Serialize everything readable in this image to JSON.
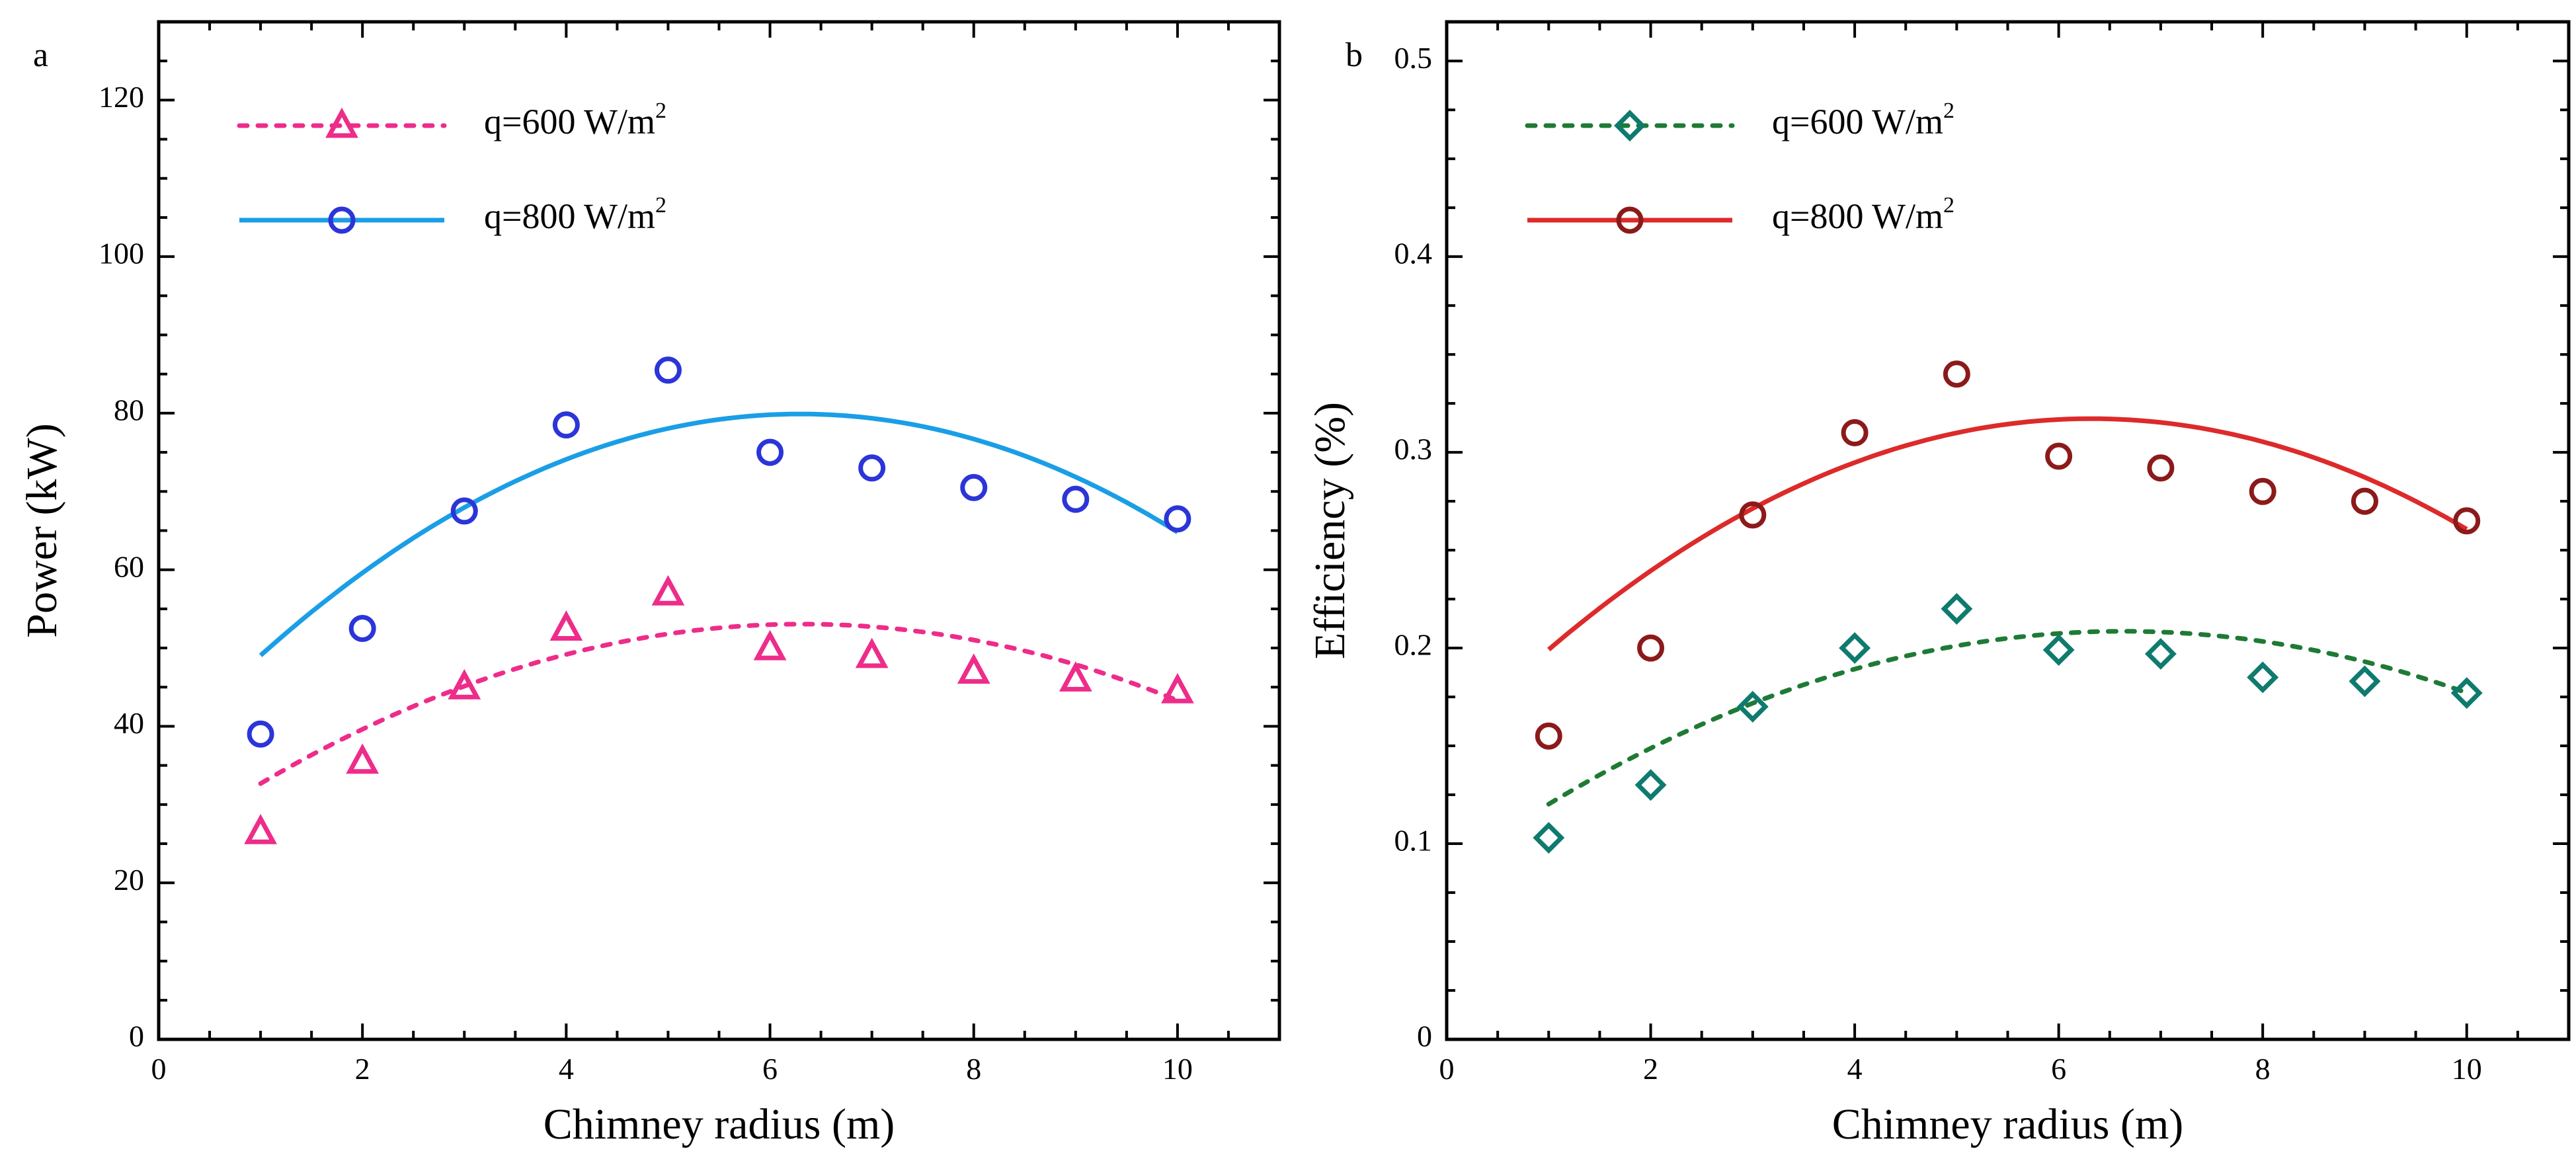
{
  "chart_data": [
    {
      "panel": "a",
      "type": "scatter",
      "title": "",
      "xlabel": "Chimney radius (m)",
      "ylabel": "Power (kW)",
      "xlim": [
        0,
        11
      ],
      "ylim": [
        0,
        130
      ],
      "x_ticks": [
        "0",
        "2",
        "4",
        "6",
        "8",
        "10"
      ],
      "y_ticks": [
        "0",
        "20",
        "40",
        "60",
        "80",
        "100",
        "120"
      ],
      "grid": false,
      "legend_position": "top-left",
      "series": [
        {
          "name": "q=600 W/m",
          "name_sup": "2",
          "color": "#ee2c8a",
          "marker": "triangle",
          "line_style": "dotted",
          "x": [
            1,
            2,
            3,
            4,
            5,
            6,
            7,
            8,
            9,
            10
          ],
          "values": [
            26.5,
            35.5,
            45,
            52.5,
            57,
            50,
            49,
            47,
            46,
            44.5
          ],
          "fit": [
            -0.72,
            9.1,
            24.3
          ]
        },
        {
          "name": "q=800 W/m",
          "name_sup": "2",
          "color": "#1a9ee6",
          "marker_color": "#2b35d8",
          "marker": "circle",
          "line_style": "solid",
          "x": [
            1,
            2,
            3,
            4,
            5,
            6,
            7,
            8,
            9,
            10
          ],
          "values": [
            39,
            52.5,
            67.5,
            78.5,
            85.5,
            75,
            73,
            70.5,
            69,
            66.5
          ],
          "fit": [
            -1.1,
            13.85,
            36.3
          ]
        }
      ]
    },
    {
      "panel": "b",
      "type": "scatter",
      "title": "",
      "xlabel": "Chimney radius (m)",
      "ylabel": "Efficiency (%)",
      "xlim": [
        0,
        11
      ],
      "ylim": [
        0,
        0.52
      ],
      "x_ticks": [
        "0",
        "2",
        "4",
        "6",
        "8",
        "10"
      ],
      "y_ticks": [
        "0",
        "0.1",
        "0.2",
        "0.3",
        "0.4",
        "0.5"
      ],
      "grid": false,
      "legend_position": "top-left",
      "series": [
        {
          "name": "q=600 W/m",
          "name_sup": "2",
          "color": "#1e7a35",
          "marker_color": "#0f7a6e",
          "marker": "diamond",
          "line_style": "dotted",
          "x": [
            1,
            2,
            3,
            4,
            5,
            6,
            7,
            8,
            9,
            10
          ],
          "values": [
            0.103,
            0.13,
            0.17,
            0.2,
            0.22,
            0.199,
            0.197,
            0.185,
            0.183,
            0.177
          ],
          "fit": [
            -0.00278,
            0.0369,
            0.0861
          ]
        },
        {
          "name": "q=800 W/m",
          "name_sup": "2",
          "color": "#dd2a2a",
          "marker_color": "#8c1a1a",
          "marker": "circle",
          "line_style": "solid",
          "x": [
            1,
            2,
            3,
            4,
            5,
            6,
            7,
            8,
            9,
            10
          ],
          "values": [
            0.155,
            0.2,
            0.268,
            0.31,
            0.34,
            0.298,
            0.292,
            0.28,
            0.275,
            0.265
          ],
          "fit": [
            -0.00417,
            0.0527,
            0.1507
          ]
        }
      ]
    }
  ]
}
